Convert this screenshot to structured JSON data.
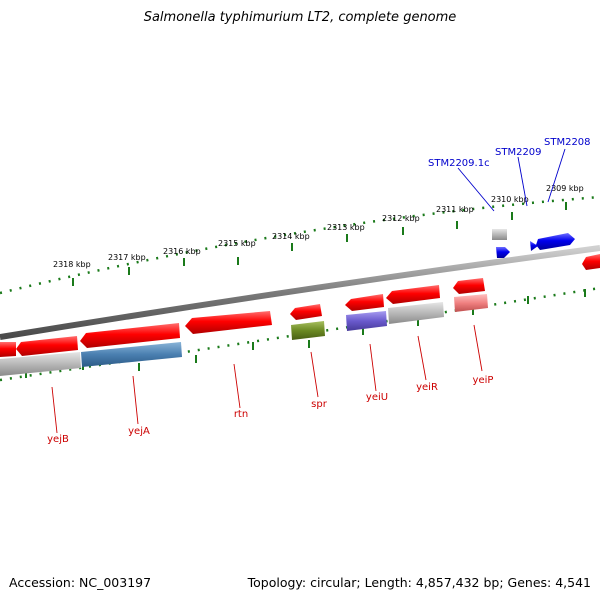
{
  "title": "Salmonella typhimurium LT2, complete genome",
  "footer": {
    "accession": "Accession: NC_003197",
    "summary": "Topology: circular; Length: 4,857,432 bp; Genes: 4,541"
  },
  "colors": {
    "gene_red": "#ff0000",
    "gene_blue": "#0000ee",
    "label_blue": "#0000cc",
    "label_red": "#cc0000",
    "tick_green": "#1a7a1a",
    "backbone_gray": "#7a7a7a",
    "cog_gray": "#b8b8b8",
    "cog_steelblue": "#4a7fb0",
    "cog_olive": "#6b8a23",
    "cog_purple": "#6a5acd",
    "cog_salmon": "#f08080"
  },
  "scale_labels": [
    {
      "id": "2318",
      "text": "2318 kbp"
    },
    {
      "id": "2317",
      "text": "2317 kbp"
    },
    {
      "id": "2316",
      "text": "2316 kbp"
    },
    {
      "id": "2315",
      "text": "2315 kbp"
    },
    {
      "id": "2314",
      "text": "2314 kbp"
    },
    {
      "id": "2313",
      "text": "2313 kbp"
    },
    {
      "id": "2312",
      "text": "2312 kbp"
    },
    {
      "id": "2311",
      "text": "2311 kbp"
    },
    {
      "id": "2310",
      "text": "2310 kbp"
    },
    {
      "id": "2309",
      "text": "2309 kbp"
    }
  ],
  "gene_labels": [
    {
      "id": "stm2208",
      "text": "STM2208",
      "color": "blue"
    },
    {
      "id": "stm2209",
      "text": "STM2209",
      "color": "blue"
    },
    {
      "id": "stm2209_1c",
      "text": "STM2209.1c",
      "color": "blue"
    },
    {
      "id": "yejb",
      "text": "yejB",
      "color": "red"
    },
    {
      "id": "yeja",
      "text": "yejA",
      "color": "red"
    },
    {
      "id": "rtn",
      "text": "rtn",
      "color": "red"
    },
    {
      "id": "spr",
      "text": "spr",
      "color": "red"
    },
    {
      "id": "yeiu",
      "text": "yeiU",
      "color": "red"
    },
    {
      "id": "yeir",
      "text": "yeiR",
      "color": "red"
    },
    {
      "id": "yeip",
      "text": "yeiP",
      "color": "red"
    }
  ]
}
